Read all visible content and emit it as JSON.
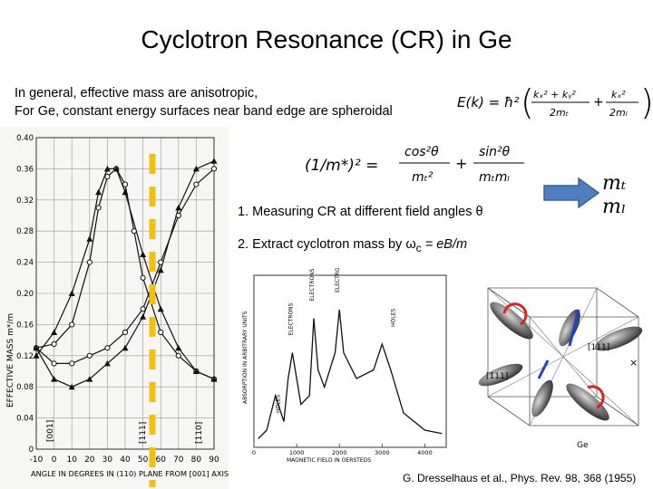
{
  "slide": {
    "title": "Cyclotron Resonance (CR) in Ge",
    "intro_line1": "In general, effective mass are anisotropic,",
    "intro_line2": "For Ge, constant energy surfaces near band edge are spheroidal",
    "energy_eq_lhs": "E(k) = ħ²",
    "energy_eq_t1_num": "kₓ² + kᵧ²",
    "energy_eq_t1_den": "2mₜ",
    "energy_eq_t2_num": "kₓ²",
    "energy_eq_t2_den": "2mₗ",
    "mass_eq_lhs": "(1/m*)² =",
    "mass_eq_t1_num": "cos²θ",
    "mass_eq_t1_den": "mₜ²",
    "mass_eq_t2_num": "sin²θ",
    "mass_eq_t2_den": "mₜmₗ",
    "step1": "1.   Measuring CR at different field angles θ",
    "step2_text": "2.   Extract cyclotron mass by ω",
    "step2_sub": "c",
    "step2_eq": "= eB/m",
    "result_mt": "mₜ",
    "result_ml": "mₗ",
    "citation": "G. Dresselhaus et al., Phys. Rev. 98, 368 (1955)"
  },
  "chart_data": [
    {
      "type": "scatter",
      "title": "",
      "xlabel": "ANGLE IN DEGREES IN (110) PLANE FROM [001] AXIS",
      "ylabel": "EFFECTIVE MASS m*/m",
      "xlim": [
        -10,
        90
      ],
      "ylim": [
        0,
        0.4
      ],
      "x_ticks": [
        "-10",
        "0",
        "10",
        "20",
        "30",
        "40",
        "50",
        "60",
        "70",
        "80",
        "90"
      ],
      "y_ticks": [
        "0",
        "0.04",
        "0.08",
        "0.12",
        "0.16",
        "0.20",
        "0.24",
        "0.28",
        "0.32",
        "0.36",
        "0.40"
      ],
      "axis_markers": [
        "[001]",
        "[111]",
        "[110]"
      ],
      "grid": true,
      "series": [
        {
          "marker": "open-circle",
          "x": [
            -10,
            0,
            10,
            20,
            25,
            30,
            35,
            40,
            45,
            50,
            60,
            70,
            80,
            90
          ],
          "y": [
            0.13,
            0.135,
            0.16,
            0.24,
            0.31,
            0.35,
            0.36,
            0.34,
            0.28,
            0.22,
            0.15,
            0.12,
            0.1,
            0.09
          ]
        },
        {
          "marker": "triangle",
          "x": [
            -10,
            0,
            10,
            20,
            25,
            30,
            35,
            40,
            50,
            60,
            70,
            80,
            90
          ],
          "y": [
            0.12,
            0.15,
            0.2,
            0.27,
            0.33,
            0.36,
            0.36,
            0.33,
            0.25,
            0.18,
            0.13,
            0.1,
            0.09
          ]
        },
        {
          "marker": "open-circle",
          "x": [
            -10,
            0,
            10,
            20,
            30,
            40,
            50,
            60,
            70,
            80,
            90
          ],
          "y": [
            0.13,
            0.11,
            0.11,
            0.12,
            0.13,
            0.15,
            0.18,
            0.24,
            0.3,
            0.34,
            0.36
          ]
        },
        {
          "marker": "triangle",
          "x": [
            -10,
            0,
            10,
            20,
            30,
            40,
            50,
            60,
            70,
            80,
            90
          ],
          "y": [
            0.13,
            0.09,
            0.08,
            0.09,
            0.11,
            0.13,
            0.17,
            0.23,
            0.31,
            0.36,
            0.37
          ]
        }
      ]
    },
    {
      "type": "line",
      "title": "",
      "xlabel": "MAGNETIC FIELD IN OERSTEDS",
      "ylabel": "ABSORPTION IN ARBITRARY UNITS",
      "x_ticks": [
        "0",
        "1000",
        "2000",
        "3000",
        "4000"
      ],
      "xlim": [
        0,
        4500
      ],
      "peak_labels": [
        "HOLES",
        "ELECTRONS",
        "ELECTRONS",
        "ELECTRONS",
        "HOLES"
      ],
      "series": [
        {
          "name": "absorption",
          "x": [
            100,
            300,
            500,
            700,
            800,
            900,
            1000,
            1100,
            1300,
            1400,
            1500,
            1650,
            1900,
            2000,
            2100,
            2400,
            2800,
            3000,
            3200,
            3500,
            4000,
            4400
          ],
          "y": [
            0.05,
            0.1,
            0.3,
            0.15,
            0.4,
            0.55,
            0.4,
            0.25,
            0.3,
            0.75,
            0.45,
            0.35,
            0.55,
            0.8,
            0.55,
            0.4,
            0.45,
            0.6,
            0.45,
            0.2,
            0.1,
            0.08
          ]
        }
      ]
    }
  ]
}
